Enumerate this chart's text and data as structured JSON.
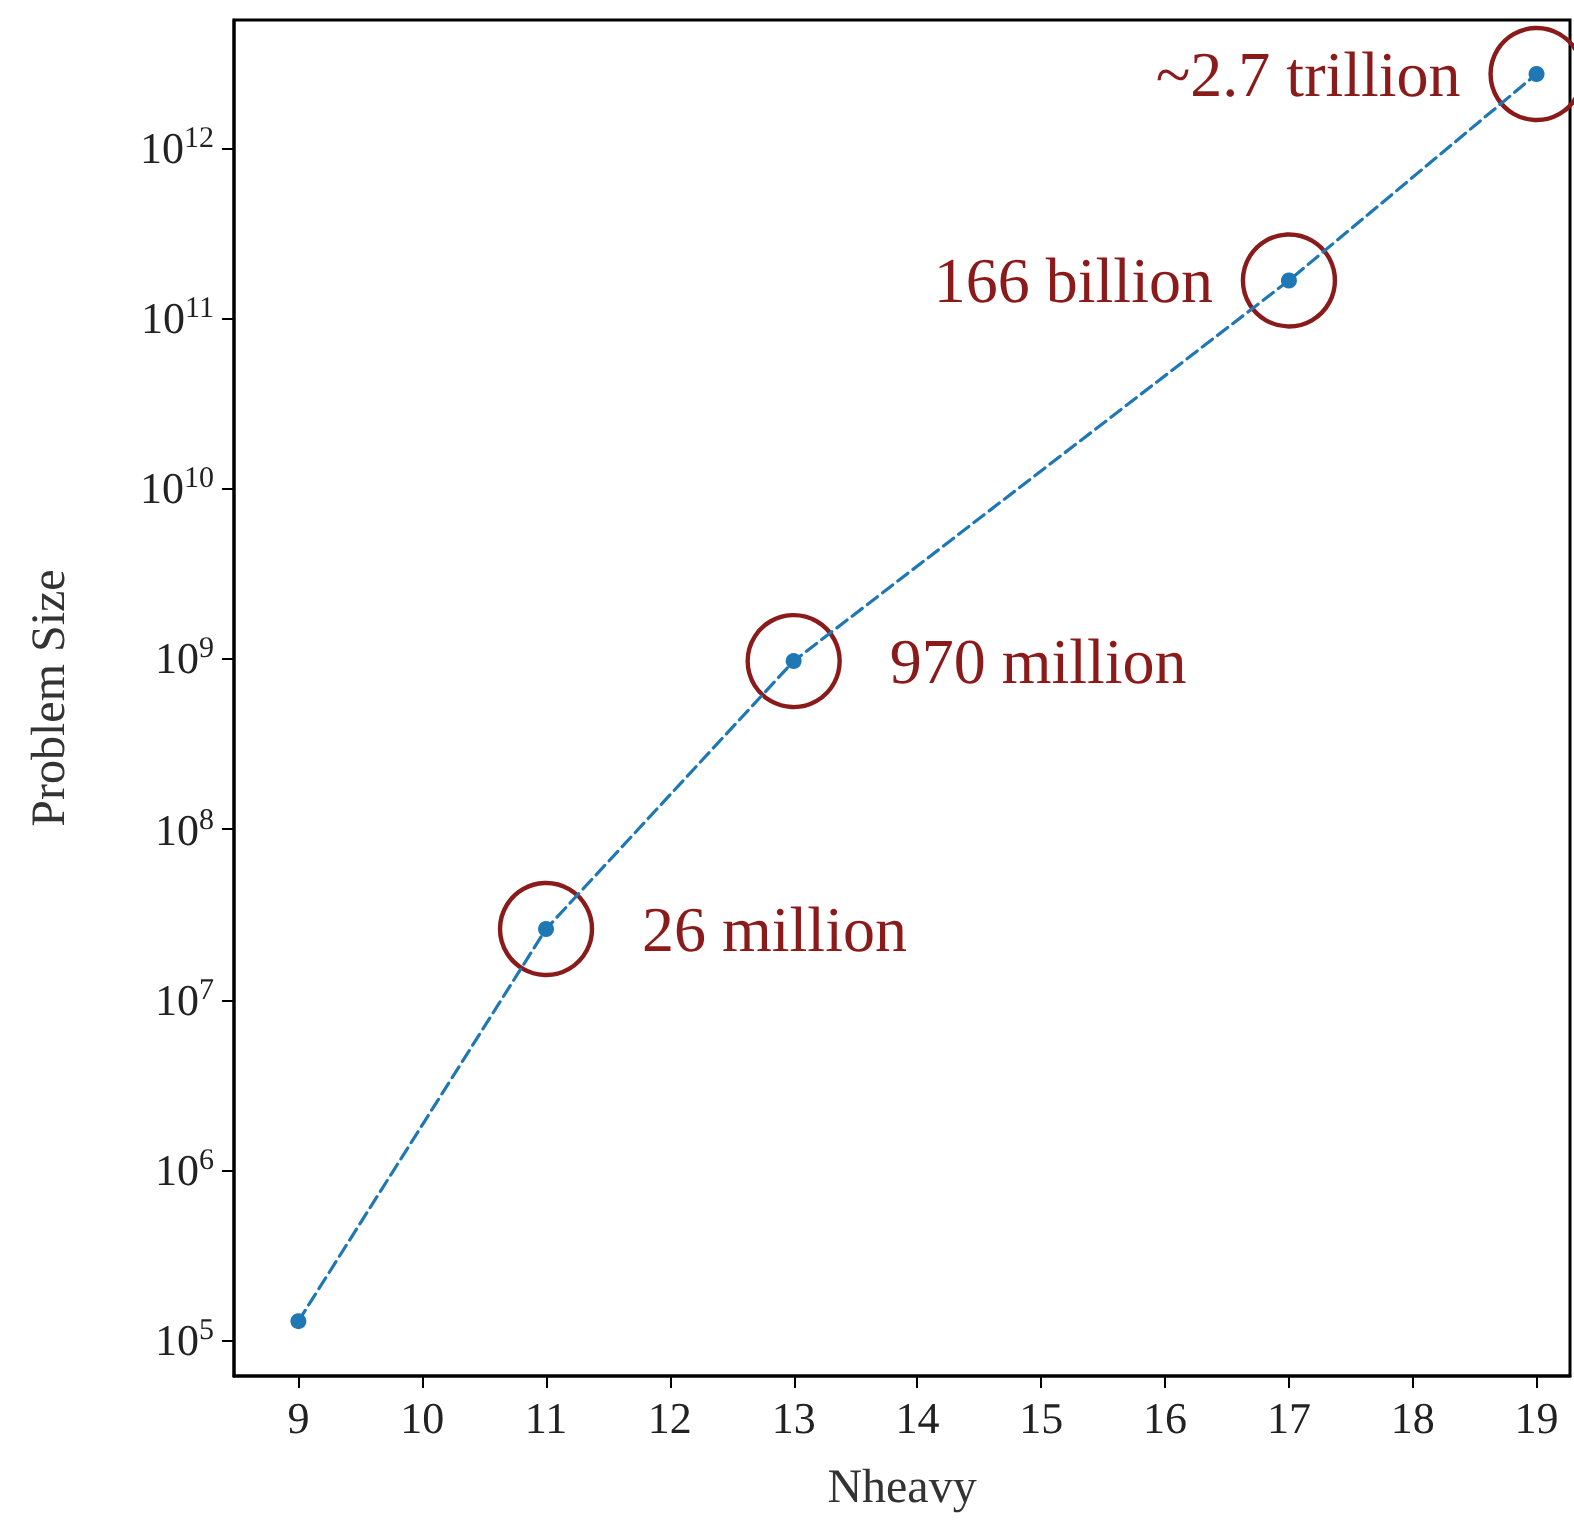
{
  "chart_data": {
    "type": "line",
    "xlabel": "Nheavy",
    "ylabel": "Problem Size",
    "log": "y",
    "marker": "circle",
    "line_style": "dashed",
    "grid": false,
    "x": [
      9,
      11,
      13,
      17,
      19
    ],
    "series": [
      {
        "color": "#1f77b4",
        "values": [
          130000,
          26000000,
          970000000,
          166000000000,
          2700000000000
        ]
      }
    ],
    "xlim": [
      8.48,
      19.27
    ],
    "xticks": [
      9,
      10,
      11,
      12,
      13,
      14,
      15,
      16,
      17,
      18,
      19
    ],
    "ylim": [
      62000,
      5600000000000
    ],
    "yticks": [
      {
        "value": 100000,
        "label": "10$^{5}$"
      },
      {
        "value": 1000000,
        "label": "10$^{6}$"
      },
      {
        "value": 10000000,
        "label": "10$^{7}$"
      },
      {
        "value": 100000000,
        "label": "10$^{8}$"
      },
      {
        "value": 1000000000,
        "label": "10$^{9}$"
      },
      {
        "value": 10000000000,
        "label": "10$^{10}$"
      },
      {
        "value": 100000000000,
        "label": "10$^{11}$"
      },
      {
        "value": 1000000000000,
        "label": "10$^{12}$"
      }
    ],
    "annotations": [
      {
        "text": "26 million",
        "x": 11,
        "y": 26000000
      },
      {
        "text": "970 million",
        "x": 13,
        "y": 970000000
      },
      {
        "text": "166 billion",
        "x": 17,
        "y": 166000000000
      },
      {
        "text": "~2.7 trillion",
        "x": 19,
        "y": 2700000000000
      }
    ]
  }
}
